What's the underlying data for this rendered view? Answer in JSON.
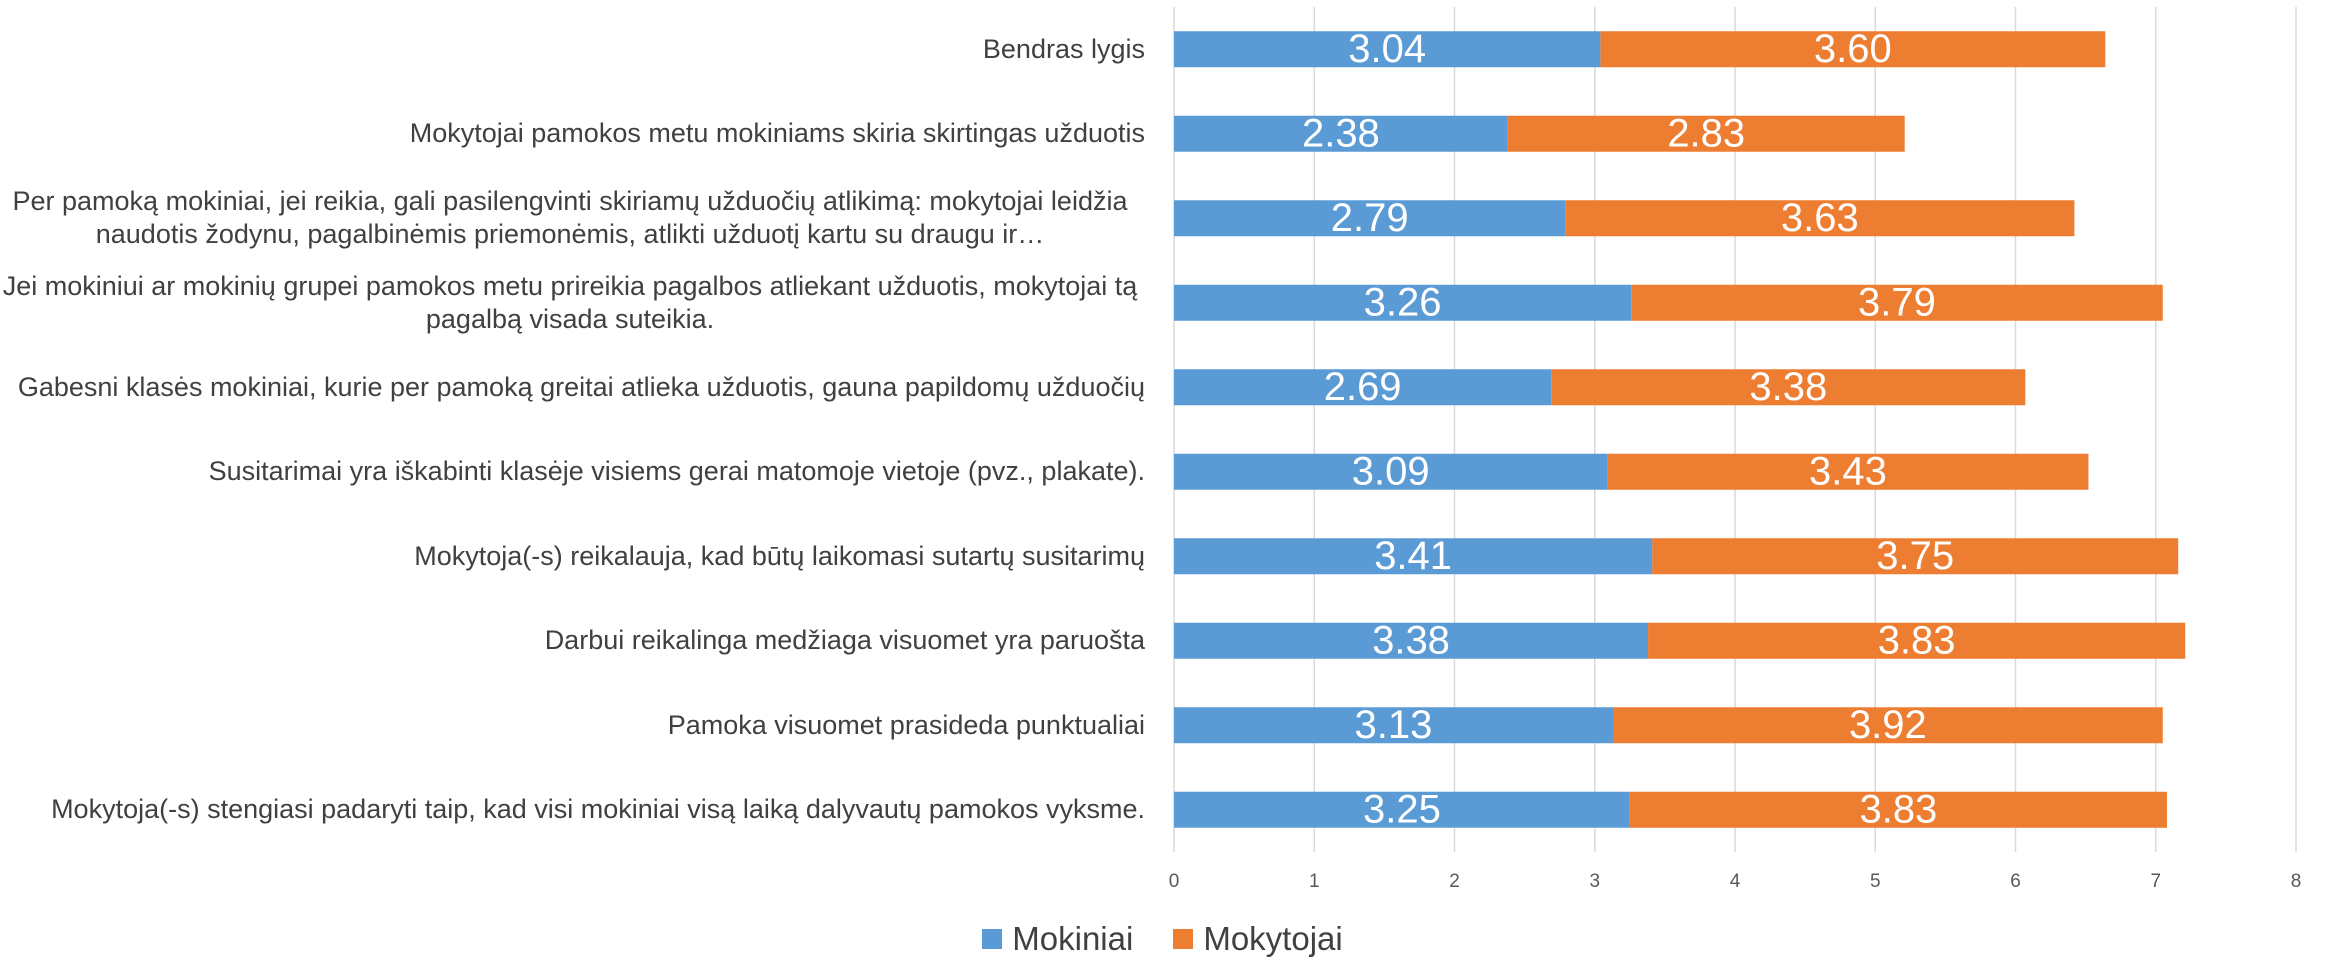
{
  "chart_data": {
    "type": "stacked_bar_horizontal",
    "categories": [
      "Bendras lygis",
      "Mokytojai pamokos metu mokiniams skiria skirtingas užduotis",
      "Per pamoką mokiniai, jei reikia, gali pasilengvinti skiriamų užduočių atlikimą: mokytojai leidžia naudotis žodynu, pagalbinėmis priemonėmis, atlikti užduotį kartu su draugu ir…",
      "Jei mokiniui ar mokinių grupei pamokos metu prireikia pagalbos atliekant užduotis, mokytojai tą pagalbą visada suteikia.",
      "Gabesni klasės mokiniai, kurie per pamoką greitai atlieka užduotis, gauna papildomų užduočių",
      "Susitarimai yra iškabinti klasėje visiems gerai matomoje vietoje (pvz., plakate).",
      "Mokytoja(-s) reikalauja, kad būtų laikomasi sutartų susitarimų",
      "Darbui reikalinga medžiaga visuomet yra paruošta",
      "Pamoka visuomet prasideda punktualiai",
      "Mokytoja(-s) stengiasi padaryti taip, kad visi mokiniai visą laiką dalyvautų pamokos vyksme."
    ],
    "series": [
      {
        "name": "Mokiniai",
        "color": "#5b9bd5",
        "values": [
          3.04,
          2.38,
          2.79,
          3.26,
          2.69,
          3.09,
          3.41,
          3.38,
          3.13,
          3.25
        ],
        "value_labels": [
          "3.04",
          "2.38",
          "2.79",
          "3.26",
          "2.69",
          "3.09",
          "3.41",
          "3.38",
          "3.13",
          "3.25"
        ]
      },
      {
        "name": "Mokytojai",
        "color": "#ed7d31",
        "values": [
          3.6,
          2.83,
          3.63,
          3.79,
          3.38,
          3.43,
          3.75,
          3.83,
          3.92,
          3.83
        ],
        "value_labels": [
          "3.60",
          "2.83",
          "3.63",
          "3.79",
          "3.38",
          "3.43",
          "3.75",
          "3.83",
          "3.92",
          "3.83"
        ]
      }
    ],
    "xlim": [
      0,
      8
    ],
    "xticks": [
      0,
      1,
      2,
      3,
      4,
      5,
      6,
      7,
      8
    ],
    "grid": true,
    "legend": "bottom"
  }
}
